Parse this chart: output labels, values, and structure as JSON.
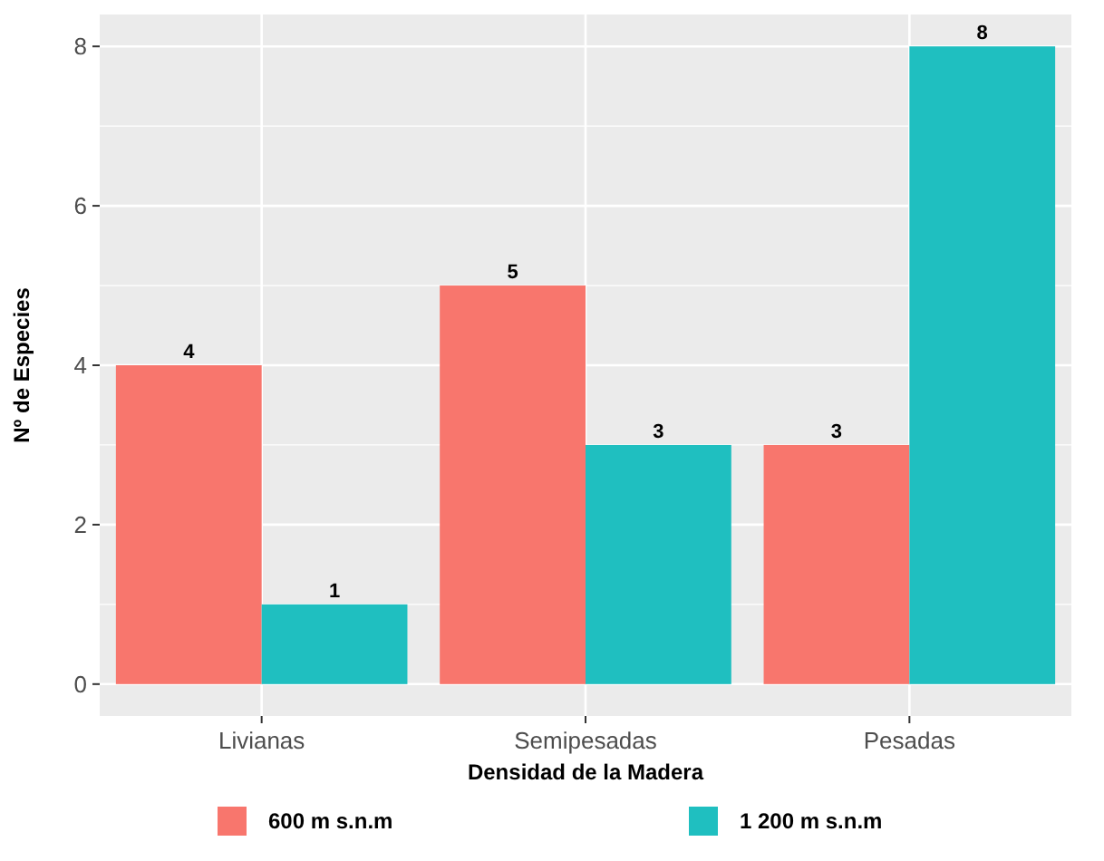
{
  "chart_data": {
    "type": "bar",
    "xlabel": "Densidad de la Madera",
    "ylabel": "Nº de Especies",
    "categories": [
      "Livianas",
      "Semipesadas",
      "Pesadas"
    ],
    "series": [
      {
        "name": "600 m s.n.m",
        "color": "#f8766d",
        "values": [
          4,
          5,
          3
        ]
      },
      {
        "name": "1 200 m s.n.m",
        "color": "#1fbfc0",
        "values": [
          1,
          3,
          8
        ]
      }
    ],
    "ylim": [
      -0.4,
      8.4
    ],
    "yticks": [
      0,
      2,
      4,
      6,
      8
    ],
    "grid": true,
    "legend": "bottom",
    "data_labels": true
  }
}
